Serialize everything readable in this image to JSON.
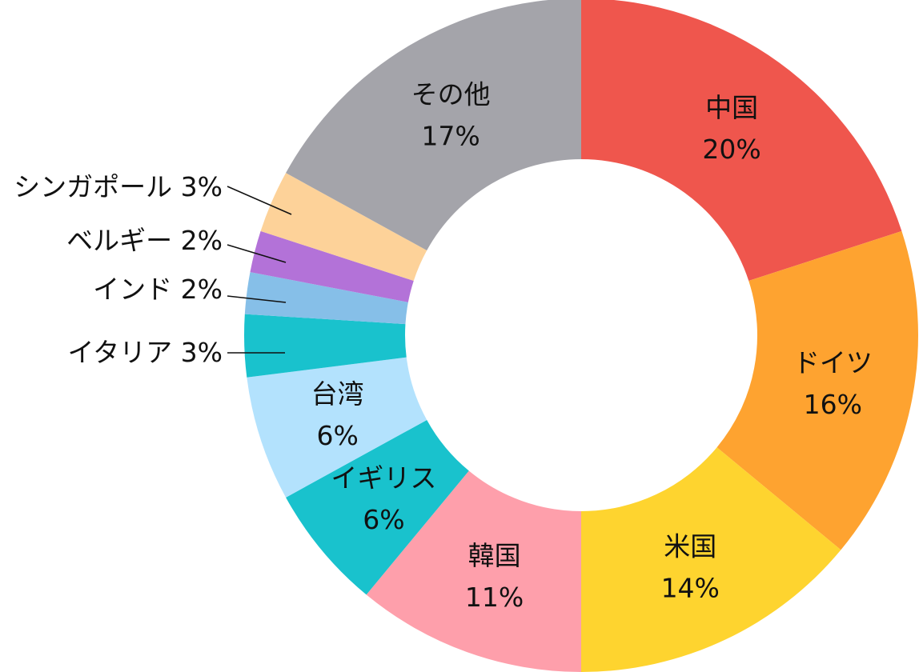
{
  "chart_data": {
    "type": "pie",
    "donut": true,
    "start": "12 o'clock, clockwise",
    "title": "",
    "slices": [
      {
        "name": "中国",
        "value": 20,
        "label": "20%",
        "color": "#EF564D",
        "label_position": "inside"
      },
      {
        "name": "ドイツ",
        "value": 16,
        "label": "16%",
        "color": "#FEA330",
        "label_position": "inside"
      },
      {
        "name": "米国",
        "value": 14,
        "label": "14%",
        "color": "#FED42F",
        "label_position": "inside"
      },
      {
        "name": "韓国",
        "value": 11,
        "label": "11%",
        "color": "#FE9FAB",
        "label_position": "inside"
      },
      {
        "name": "イギリス",
        "value": 6,
        "label": "6%",
        "color": "#19C2CD",
        "label_position": "inside"
      },
      {
        "name": "台湾",
        "value": 6,
        "label": "6%",
        "color": "#B3E2FD",
        "label_position": "inside"
      },
      {
        "name": "イタリア",
        "value": 3,
        "label": "3%",
        "color": "#19C2CD",
        "label_position": "outside"
      },
      {
        "name": "インド",
        "value": 2,
        "label": "2%",
        "color": "#86BFE8",
        "label_position": "outside"
      },
      {
        "name": "ベルギー",
        "value": 2,
        "label": "2%",
        "color": "#B372D8",
        "label_position": "outside"
      },
      {
        "name": "シンガポール",
        "value": 3,
        "label": "3%",
        "color": "#FDD299",
        "label_position": "outside"
      },
      {
        "name": "その他",
        "value": 17,
        "label": "17%",
        "color": "#A4A4AA",
        "label_position": "inside"
      }
    ]
  }
}
